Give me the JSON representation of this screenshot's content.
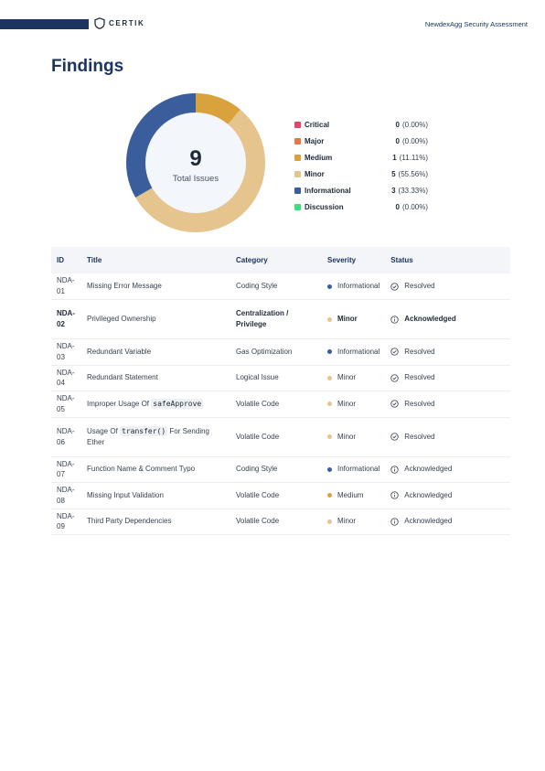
{
  "header": {
    "brand": "CERTIK",
    "doc_title": "NewdexAgg Security Assessment"
  },
  "page_title": "Findings",
  "summary": {
    "total": "9",
    "total_label": "Total Issues"
  },
  "colors": {
    "critical": "#e0466b",
    "major": "#e27a4e",
    "medium": "#d9a23c",
    "minor": "#e6c48e",
    "informational": "#3a5e9c",
    "discussion": "#3ee07a",
    "navy": "#1c3460"
  },
  "legend": [
    {
      "label": "Critical",
      "count": "0",
      "pct": "(0.00%)",
      "color": "#e0466b"
    },
    {
      "label": "Major",
      "count": "0",
      "pct": "(0.00%)",
      "color": "#e27a4e"
    },
    {
      "label": "Medium",
      "count": "1",
      "pct": "(11.11%)",
      "color": "#d9a23c"
    },
    {
      "label": "Minor",
      "count": "5",
      "pct": "(55.56%)",
      "color": "#e6c48e"
    },
    {
      "label": "Informational",
      "count": "3",
      "pct": "(33.33%)",
      "color": "#3a5e9c"
    },
    {
      "label": "Discussion",
      "count": "0",
      "pct": "(0.00%)",
      "color": "#3ee07a"
    }
  ],
  "chart_data": {
    "type": "pie",
    "categories": [
      "Critical",
      "Major",
      "Medium",
      "Minor",
      "Informational",
      "Discussion"
    ],
    "values": [
      0,
      0,
      1,
      5,
      3,
      0
    ]
  },
  "table": {
    "headers": {
      "id": "ID",
      "title": "Title",
      "category": "Category",
      "severity": "Severity",
      "status": "Status"
    },
    "rows": [
      {
        "id": "NDA-01",
        "title_pre": "Missing Error Message",
        "code": "",
        "title_post": "",
        "category": "Coding Style",
        "severity": "Informational",
        "status": "Resolved"
      },
      {
        "id": "NDA-02",
        "title_pre": "Privileged Ownership",
        "code": "",
        "title_post": "",
        "category": "Centralization / Privilege",
        "severity": "Minor",
        "status": "Acknowledged"
      },
      {
        "id": "NDA-03",
        "title_pre": "Redundant Variable",
        "code": "",
        "title_post": "",
        "category": "Gas Optimization",
        "severity": "Informational",
        "status": "Resolved"
      },
      {
        "id": "NDA-04",
        "title_pre": "Redundant Statement",
        "code": "",
        "title_post": "",
        "category": "Logical Issue",
        "severity": "Minor",
        "status": "Resolved"
      },
      {
        "id": "NDA-05",
        "title_pre": "Improper Usage Of ",
        "code": "safeApprove",
        "title_post": "",
        "category": "Volatile Code",
        "severity": "Minor",
        "status": "Resolved"
      },
      {
        "id": "NDA-06",
        "title_pre": "Usage Of ",
        "code": "transfer()",
        "title_post": " For Sending Ether",
        "category": "Volatile Code",
        "severity": "Minor",
        "status": "Resolved"
      },
      {
        "id": "NDA-07",
        "title_pre": "Function Name & Comment Typo",
        "code": "",
        "title_post": "",
        "category": "Coding Style",
        "severity": "Informational",
        "status": "Acknowledged"
      },
      {
        "id": "NDA-08",
        "title_pre": "Missing Input Validation",
        "code": "",
        "title_post": "",
        "category": "Volatile Code",
        "severity": "Medium",
        "status": "Acknowledged"
      },
      {
        "id": "NDA-09",
        "title_pre": "Third Party Dependencies",
        "code": "",
        "title_post": "",
        "category": "Volatile Code",
        "severity": "Minor",
        "status": "Acknowledged"
      }
    ]
  }
}
